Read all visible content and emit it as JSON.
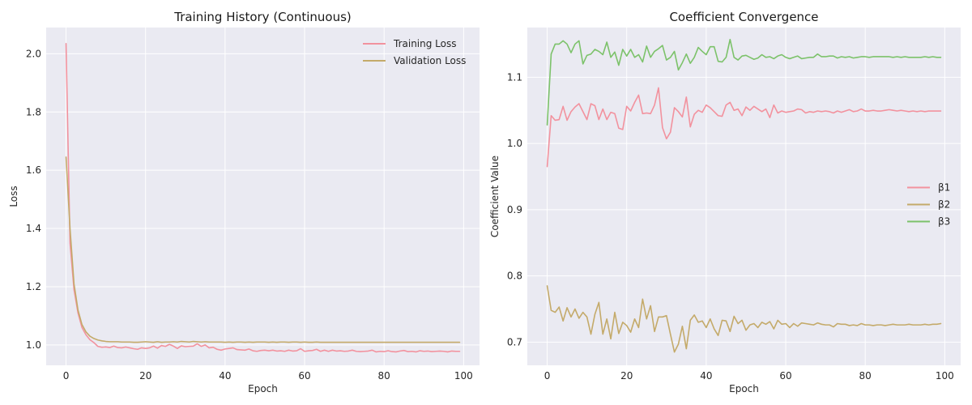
{
  "chart_data": [
    {
      "type": "line",
      "title": "Training History (Continuous)",
      "xlabel": "Epoch",
      "ylabel": "Loss",
      "xlim": [
        -5,
        104
      ],
      "ylim": [
        0.93,
        2.09
      ],
      "xticks": [
        0,
        20,
        40,
        60,
        80,
        100
      ],
      "yticks": [
        1.0,
        1.2,
        1.4,
        1.6,
        1.8,
        2.0
      ],
      "ytick_decimals": 1,
      "grid": true,
      "legend_position": "top-right",
      "x": [
        0,
        1,
        2,
        3,
        4,
        5,
        6,
        7,
        8,
        9,
        10,
        11,
        12,
        13,
        14,
        15,
        16,
        17,
        18,
        19,
        20,
        21,
        22,
        23,
        24,
        25,
        26,
        27,
        28,
        29,
        30,
        31,
        32,
        33,
        34,
        35,
        36,
        37,
        38,
        39,
        40,
        41,
        42,
        43,
        44,
        45,
        46,
        47,
        48,
        49,
        50,
        51,
        52,
        53,
        54,
        55,
        56,
        57,
        58,
        59,
        60,
        61,
        62,
        63,
        64,
        65,
        66,
        67,
        68,
        69,
        70,
        71,
        72,
        73,
        74,
        75,
        76,
        77,
        78,
        79,
        80,
        81,
        82,
        83,
        84,
        85,
        86,
        87,
        88,
        89,
        90,
        91,
        92,
        93,
        94,
        95,
        96,
        97,
        98,
        99
      ],
      "series": [
        {
          "name": "Training Loss",
          "color": "#f2929e",
          "values": [
            2.035,
            1.35,
            1.19,
            1.11,
            1.06,
            1.035,
            1.018,
            1.008,
            0.995,
            0.992,
            0.993,
            0.991,
            0.996,
            0.991,
            0.99,
            0.993,
            0.99,
            0.987,
            0.985,
            0.99,
            0.988,
            0.99,
            0.996,
            0.989,
            0.998,
            0.995,
            1.002,
            0.996,
            0.988,
            0.997,
            0.994,
            0.995,
            0.996,
            1.004,
            0.995,
            1.0,
            0.99,
            0.992,
            0.985,
            0.982,
            0.986,
            0.988,
            0.99,
            0.984,
            0.983,
            0.982,
            0.986,
            0.98,
            0.978,
            0.981,
            0.982,
            0.98,
            0.982,
            0.979,
            0.98,
            0.978,
            0.982,
            0.979,
            0.98,
            0.987,
            0.978,
            0.98,
            0.981,
            0.985,
            0.978,
            0.982,
            0.978,
            0.982,
            0.979,
            0.98,
            0.978,
            0.979,
            0.982,
            0.978,
            0.977,
            0.978,
            0.979,
            0.982,
            0.976,
            0.978,
            0.977,
            0.98,
            0.977,
            0.976,
            0.979,
            0.981,
            0.977,
            0.978,
            0.976,
            0.98,
            0.978,
            0.979,
            0.977,
            0.978,
            0.979,
            0.978,
            0.976,
            0.979,
            0.978,
            0.978
          ]
        },
        {
          "name": "Validation Loss",
          "color": "#c4aa6a",
          "values": [
            1.645,
            1.4,
            1.21,
            1.12,
            1.07,
            1.045,
            1.03,
            1.022,
            1.017,
            1.014,
            1.012,
            1.011,
            1.011,
            1.011,
            1.01,
            1.01,
            1.01,
            1.009,
            1.009,
            1.01,
            1.011,
            1.01,
            1.009,
            1.011,
            1.009,
            1.01,
            1.01,
            1.011,
            1.01,
            1.012,
            1.011,
            1.01,
            1.012,
            1.011,
            1.01,
            1.011,
            1.01,
            1.01,
            1.01,
            1.01,
            1.009,
            1.01,
            1.009,
            1.01,
            1.01,
            1.009,
            1.01,
            1.009,
            1.01,
            1.01,
            1.01,
            1.009,
            1.01,
            1.009,
            1.01,
            1.01,
            1.009,
            1.01,
            1.01,
            1.009,
            1.01,
            1.009,
            1.009,
            1.01,
            1.009,
            1.009,
            1.009,
            1.009,
            1.009,
            1.009,
            1.009,
            1.009,
            1.009,
            1.009,
            1.009,
            1.009,
            1.009,
            1.009,
            1.009,
            1.009,
            1.009,
            1.009,
            1.009,
            1.009,
            1.009,
            1.009,
            1.009,
            1.009,
            1.009,
            1.009,
            1.009,
            1.009,
            1.009,
            1.009,
            1.009,
            1.009,
            1.009,
            1.009,
            1.009,
            1.009
          ]
        }
      ]
    },
    {
      "type": "line",
      "title": "Coefficient Convergence",
      "xlabel": "Epoch",
      "ylabel": "Coefficient Value",
      "xlim": [
        -5,
        104
      ],
      "ylim": [
        0.665,
        1.175
      ],
      "xticks": [
        0,
        20,
        40,
        60,
        80,
        100
      ],
      "yticks": [
        0.7,
        0.8,
        0.9,
        1.0,
        1.1
      ],
      "ytick_decimals": 1,
      "grid": true,
      "legend_position": "center-right",
      "x": [
        0,
        1,
        2,
        3,
        4,
        5,
        6,
        7,
        8,
        9,
        10,
        11,
        12,
        13,
        14,
        15,
        16,
        17,
        18,
        19,
        20,
        21,
        22,
        23,
        24,
        25,
        26,
        27,
        28,
        29,
        30,
        31,
        32,
        33,
        34,
        35,
        36,
        37,
        38,
        39,
        40,
        41,
        42,
        43,
        44,
        45,
        46,
        47,
        48,
        49,
        50,
        51,
        52,
        53,
        54,
        55,
        56,
        57,
        58,
        59,
        60,
        61,
        62,
        63,
        64,
        65,
        66,
        67,
        68,
        69,
        70,
        71,
        72,
        73,
        74,
        75,
        76,
        77,
        78,
        79,
        80,
        81,
        82,
        83,
        84,
        85,
        86,
        87,
        88,
        89,
        90,
        91,
        92,
        93,
        94,
        95,
        96,
        97,
        98,
        99
      ],
      "series": [
        {
          "name": "β1",
          "color": "#f2929e",
          "values": [
            0.965,
            1.042,
            1.035,
            1.036,
            1.056,
            1.035,
            1.048,
            1.055,
            1.06,
            1.048,
            1.036,
            1.06,
            1.057,
            1.036,
            1.052,
            1.036,
            1.047,
            1.045,
            1.023,
            1.021,
            1.056,
            1.049,
            1.062,
            1.073,
            1.045,
            1.046,
            1.045,
            1.058,
            1.084,
            1.024,
            1.007,
            1.017,
            1.054,
            1.048,
            1.04,
            1.07,
            1.025,
            1.044,
            1.05,
            1.047,
            1.058,
            1.054,
            1.048,
            1.042,
            1.041,
            1.058,
            1.062,
            1.05,
            1.052,
            1.042,
            1.055,
            1.05,
            1.056,
            1.052,
            1.048,
            1.052,
            1.039,
            1.058,
            1.046,
            1.049,
            1.047,
            1.048,
            1.049,
            1.052,
            1.051,
            1.046,
            1.048,
            1.047,
            1.049,
            1.048,
            1.049,
            1.048,
            1.046,
            1.049,
            1.047,
            1.049,
            1.051,
            1.048,
            1.049,
            1.052,
            1.049,
            1.049,
            1.05,
            1.049,
            1.049,
            1.05,
            1.051,
            1.05,
            1.049,
            1.05,
            1.049,
            1.048,
            1.049,
            1.048,
            1.049,
            1.048,
            1.049,
            1.049,
            1.049,
            1.049
          ]
        },
        {
          "name": "β2",
          "color": "#c4aa6a",
          "values": [
            0.785,
            0.748,
            0.745,
            0.753,
            0.732,
            0.752,
            0.738,
            0.75,
            0.736,
            0.745,
            0.738,
            0.712,
            0.742,
            0.76,
            0.712,
            0.735,
            0.705,
            0.745,
            0.713,
            0.73,
            0.725,
            0.715,
            0.735,
            0.722,
            0.765,
            0.735,
            0.755,
            0.716,
            0.738,
            0.738,
            0.74,
            0.712,
            0.685,
            0.697,
            0.724,
            0.69,
            0.733,
            0.741,
            0.73,
            0.732,
            0.722,
            0.735,
            0.72,
            0.71,
            0.733,
            0.732,
            0.716,
            0.739,
            0.728,
            0.733,
            0.718,
            0.726,
            0.728,
            0.722,
            0.73,
            0.727,
            0.731,
            0.72,
            0.733,
            0.727,
            0.728,
            0.722,
            0.728,
            0.724,
            0.729,
            0.728,
            0.727,
            0.726,
            0.729,
            0.727,
            0.726,
            0.726,
            0.723,
            0.728,
            0.727,
            0.727,
            0.725,
            0.726,
            0.725,
            0.728,
            0.726,
            0.726,
            0.725,
            0.726,
            0.726,
            0.725,
            0.726,
            0.727,
            0.726,
            0.726,
            0.726,
            0.727,
            0.726,
            0.726,
            0.726,
            0.727,
            0.726,
            0.727,
            0.727,
            0.728
          ]
        },
        {
          "name": "β3",
          "color": "#7cc26a",
          "values": [
            1.028,
            1.135,
            1.15,
            1.15,
            1.155,
            1.15,
            1.137,
            1.15,
            1.155,
            1.12,
            1.133,
            1.135,
            1.142,
            1.139,
            1.134,
            1.153,
            1.13,
            1.138,
            1.118,
            1.142,
            1.132,
            1.142,
            1.13,
            1.134,
            1.123,
            1.147,
            1.13,
            1.139,
            1.143,
            1.148,
            1.126,
            1.13,
            1.139,
            1.111,
            1.122,
            1.135,
            1.121,
            1.13,
            1.145,
            1.139,
            1.134,
            1.146,
            1.146,
            1.124,
            1.123,
            1.13,
            1.157,
            1.13,
            1.126,
            1.132,
            1.133,
            1.13,
            1.127,
            1.129,
            1.134,
            1.13,
            1.131,
            1.128,
            1.132,
            1.134,
            1.13,
            1.128,
            1.13,
            1.132,
            1.128,
            1.129,
            1.13,
            1.13,
            1.135,
            1.131,
            1.131,
            1.132,
            1.132,
            1.129,
            1.131,
            1.13,
            1.131,
            1.129,
            1.13,
            1.131,
            1.131,
            1.13,
            1.131,
            1.131,
            1.131,
            1.131,
            1.131,
            1.13,
            1.131,
            1.13,
            1.131,
            1.13,
            1.13,
            1.13,
            1.13,
            1.131,
            1.13,
            1.131,
            1.13,
            1.13
          ]
        }
      ]
    }
  ]
}
